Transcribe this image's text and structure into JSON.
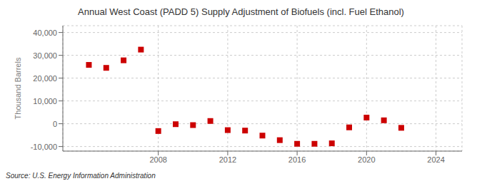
{
  "chart_data": {
    "type": "scatter",
    "title": "Annual West Coast (PADD 5) Supply Adjustment of Biofuels (incl. Fuel Ethanol)",
    "ylabel": "Thousand Barrels",
    "annotations": [
      "Source: U.S. Energy Information Administration"
    ],
    "x": [
      2004,
      2005,
      2006,
      2007,
      2008,
      2009,
      2010,
      2011,
      2012,
      2013,
      2014,
      2015,
      2016,
      2017,
      2018,
      2019,
      2020,
      2021,
      2022,
      2023
    ],
    "values": [
      25800,
      24500,
      27800,
      32500,
      -3200,
      -200,
      -600,
      1200,
      -2800,
      -3000,
      -5200,
      -7200,
      -8800,
      -8800,
      -8600,
      -1600,
      2700,
      1500,
      -1800,
      null
    ],
    "color": "#cc0000",
    "marker": "square",
    "grid": true,
    "xlim": [
      2002.5,
      2025.5
    ],
    "xticks": [
      2008,
      2012,
      2016,
      2020,
      2024
    ],
    "ylim": [
      -12000,
      43000
    ],
    "yticks": [
      {
        "value": -10000,
        "label": "-10,000"
      },
      0,
      {
        "value": 10000,
        "label": "10,000"
      },
      {
        "value": 20000,
        "label": "20,000"
      },
      {
        "value": 30000,
        "label": "30,000"
      },
      {
        "value": 40000,
        "label": "40,000"
      }
    ]
  }
}
